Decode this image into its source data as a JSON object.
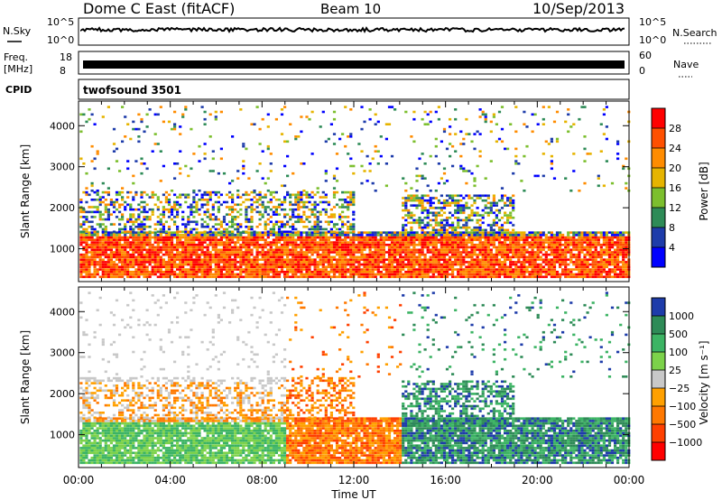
{
  "header": {
    "station": "Dome C East (fitACF)",
    "beam": "Beam 10",
    "date": "10/Sep/2013"
  },
  "sky_panel": {
    "left_label": "N.Sky",
    "right_label": "N.Search",
    "ticks_left": [
      "10^5",
      "10^0"
    ],
    "ticks_right": [
      "10^5",
      "10^0"
    ]
  },
  "freq_panel": {
    "left_label_line1": "Freq.",
    "left_label_line2": "[MHz]",
    "ticks_left": [
      "18",
      "8"
    ],
    "right_label": "Nave",
    "ticks_right": [
      "60",
      "0"
    ]
  },
  "cpid_panel": {
    "label": "CPID",
    "program": "twofsound 3501"
  },
  "x_axis": {
    "label": "Time UT",
    "ticks": [
      "00:00",
      "04:00",
      "08:00",
      "12:00",
      "16:00",
      "20:00",
      "00:00"
    ]
  },
  "chart_data": [
    {
      "type": "heatmap",
      "name": "power",
      "ylabel": "Slant Range [km]",
      "xlim": [
        0,
        24
      ],
      "ylim": [
        200,
        4600
      ],
      "yticks": [
        1000,
        2000,
        3000,
        4000
      ],
      "colorbar": {
        "label": "Power [dB]",
        "ticks": [
          "28",
          "24",
          "20",
          "16",
          "12",
          "8",
          "4"
        ],
        "colors": [
          "#ff0000",
          "#ff5000",
          "#ff8c00",
          "#e6b400",
          "#7cbf2e",
          "#2e8b57",
          "#1e3caa",
          "#0000ff"
        ]
      }
    },
    {
      "type": "heatmap",
      "name": "velocity",
      "ylabel": "Slant Range [km]",
      "xlim": [
        0,
        24
      ],
      "ylim": [
        200,
        4600
      ],
      "yticks": [
        1000,
        2000,
        3000,
        4000
      ],
      "colorbar": {
        "label": "Velocity [m s⁻¹]",
        "ticks": [
          "1000",
          "500",
          "100",
          "25",
          "−25",
          "−100",
          "−500",
          "−1000"
        ],
        "colors": [
          "#1e3caa",
          "#2e8b57",
          "#3cb464",
          "#7cd24a",
          "#c8c8c8",
          "#ffa000",
          "#ff7800",
          "#ff4000",
          "#ff0000"
        ]
      }
    }
  ]
}
